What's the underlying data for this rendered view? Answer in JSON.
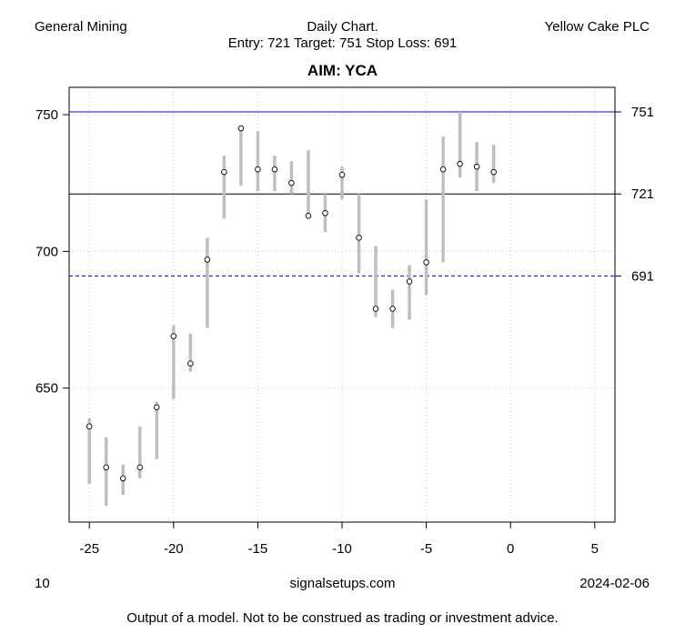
{
  "header": {
    "left": "General Mining",
    "center_line1": "Daily Chart.",
    "center_line2": "Entry: 721 Target: 751 Stop Loss: 691",
    "right": "Yellow Cake PLC"
  },
  "footer": {
    "left": "10",
    "center": "signalsetups.com",
    "right": "2024-02-06",
    "disclaimer": "Output of a model. Not to be construed as trading or investment advice."
  },
  "chart_data": {
    "type": "scatter",
    "title": "AIM: YCA",
    "xlabel": "",
    "ylabel": "",
    "xlim": [
      -26.2,
      6.2
    ],
    "ylim": [
      601,
      760
    ],
    "x_ticks": [
      -25,
      -20,
      -15,
      -10,
      -5,
      0,
      5
    ],
    "y_ticks_left": [
      650,
      700,
      750
    ],
    "y_ticks_right": [
      691,
      721,
      751
    ],
    "grid": true,
    "colors": {
      "range_bar": "#bebebe",
      "target": "#0000cc",
      "entry": "#000000",
      "stop": "#0000cc"
    },
    "levels": {
      "entry": 721,
      "target": 751,
      "stop_loss": 691
    },
    "bars": [
      {
        "x": -25,
        "low": 615,
        "high": 639,
        "close": 636
      },
      {
        "x": -24,
        "low": 607,
        "high": 632,
        "close": 621
      },
      {
        "x": -23,
        "low": 611,
        "high": 622,
        "close": 617
      },
      {
        "x": -22,
        "low": 617,
        "high": 636,
        "close": 621
      },
      {
        "x": -21,
        "low": 624,
        "high": 645,
        "close": 643
      },
      {
        "x": -20,
        "low": 646,
        "high": 673,
        "close": 669
      },
      {
        "x": -19,
        "low": 656,
        "high": 670,
        "close": 659
      },
      {
        "x": -18,
        "low": 672,
        "high": 705,
        "close": 697
      },
      {
        "x": -17,
        "low": 712,
        "high": 735,
        "close": 729
      },
      {
        "x": -16,
        "low": 724,
        "high": 746,
        "close": 745
      },
      {
        "x": -15,
        "low": 722,
        "high": 744,
        "close": 730
      },
      {
        "x": -14,
        "low": 722,
        "high": 735,
        "close": 730
      },
      {
        "x": -13,
        "low": 721,
        "high": 733,
        "close": 725
      },
      {
        "x": -12,
        "low": 712,
        "high": 737,
        "close": 713
      },
      {
        "x": -11,
        "low": 707,
        "high": 721,
        "close": 714
      },
      {
        "x": -10,
        "low": 719,
        "high": 731,
        "close": 728
      },
      {
        "x": -9,
        "low": 692,
        "high": 721,
        "close": 705
      },
      {
        "x": -8,
        "low": 676,
        "high": 702,
        "close": 679
      },
      {
        "x": -7,
        "low": 672,
        "high": 686,
        "close": 679
      },
      {
        "x": -6,
        "low": 675,
        "high": 695,
        "close": 689
      },
      {
        "x": -5,
        "low": 684,
        "high": 719,
        "close": 696
      },
      {
        "x": -4,
        "low": 696,
        "high": 742,
        "close": 730
      },
      {
        "x": -3,
        "low": 727,
        "high": 751,
        "close": 732
      },
      {
        "x": -2,
        "low": 722,
        "high": 740,
        "close": 731
      },
      {
        "x": -1,
        "low": 725,
        "high": 739,
        "close": 729
      }
    ]
  }
}
